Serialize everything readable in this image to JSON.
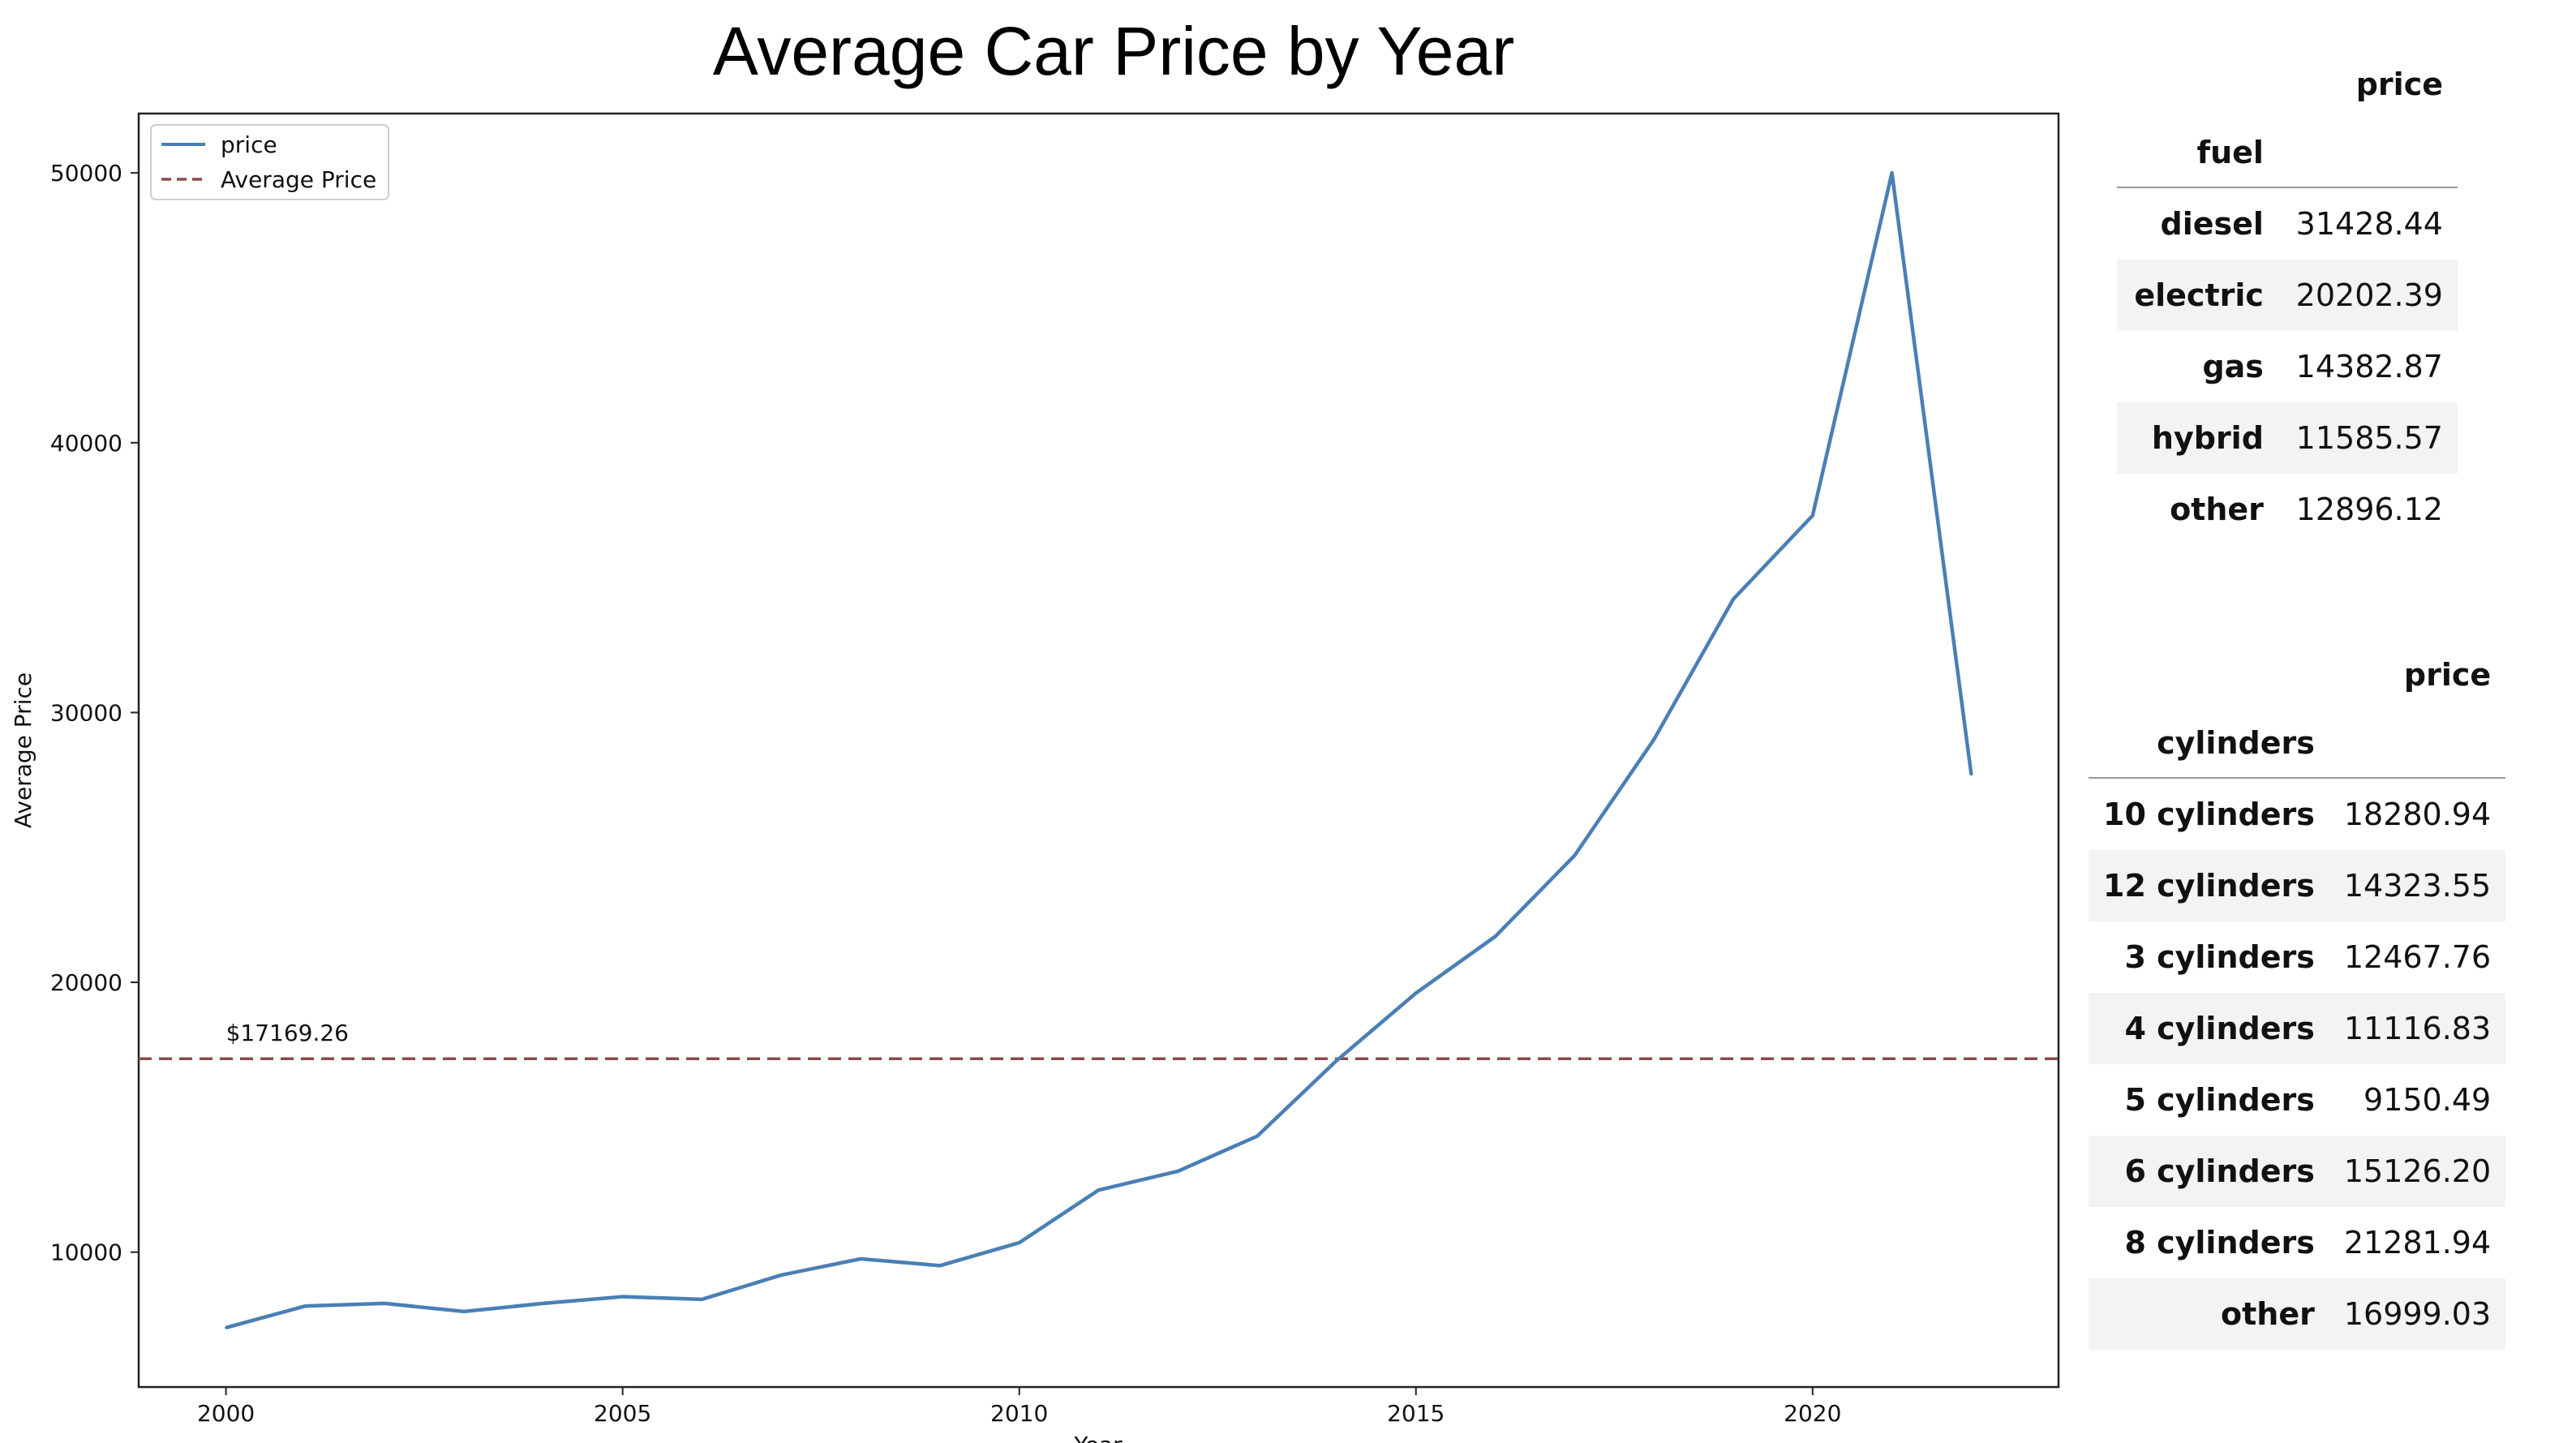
{
  "chart_data": {
    "type": "line",
    "title": "Average Car Price by Year",
    "xlabel": "Year",
    "ylabel": "Average Price",
    "xlim": [
      1998.9,
      2023.1
    ],
    "ylim": [
      5000,
      52200
    ],
    "xticks": [
      2000,
      2005,
      2010,
      2015,
      2020
    ],
    "yticks": [
      10000,
      20000,
      30000,
      40000,
      50000
    ],
    "grid": false,
    "legend_position": "top-left",
    "series": [
      {
        "name": "price",
        "color": "#4a7fb5",
        "style": "solid",
        "x": [
          2000,
          2001,
          2002,
          2003,
          2004,
          2005,
          2006,
          2007,
          2008,
          2009,
          2010,
          2011,
          2012,
          2013,
          2014,
          2015,
          2016,
          2017,
          2018,
          2019,
          2020,
          2021,
          2022
        ],
        "y": [
          7200,
          8000,
          8100,
          7800,
          8100,
          8350,
          8250,
          9150,
          9750,
          9500,
          10350,
          12300,
          13000,
          14300,
          17100,
          19600,
          21700,
          24700,
          29000,
          34200,
          37300,
          50000,
          27700
        ]
      },
      {
        "name": "Average Price",
        "color": "#8b4a4a",
        "style": "dashed",
        "y_constant": 17169.26
      }
    ],
    "annotations": [
      {
        "text": "$17169.26",
        "x": 2000,
        "y": 17169.26
      }
    ]
  },
  "fuel_table": {
    "col_header": "price",
    "index_name": "fuel",
    "rows": [
      {
        "label": "diesel",
        "value": "31428.44"
      },
      {
        "label": "electric",
        "value": "20202.39"
      },
      {
        "label": "gas",
        "value": "14382.87"
      },
      {
        "label": "hybrid",
        "value": "11585.57"
      },
      {
        "label": "other",
        "value": "12896.12"
      }
    ]
  },
  "cylinders_table": {
    "col_header": "price",
    "index_name": "cylinders",
    "rows": [
      {
        "label": "10 cylinders",
        "value": "18280.94"
      },
      {
        "label": "12 cylinders",
        "value": "14323.55"
      },
      {
        "label": "3 cylinders",
        "value": "12467.76"
      },
      {
        "label": "4 cylinders",
        "value": "11116.83"
      },
      {
        "label": "5 cylinders",
        "value": "9150.49"
      },
      {
        "label": "6 cylinders",
        "value": "15126.20"
      },
      {
        "label": "8 cylinders",
        "value": "21281.94"
      },
      {
        "label": "other",
        "value": "16999.03"
      }
    ]
  }
}
